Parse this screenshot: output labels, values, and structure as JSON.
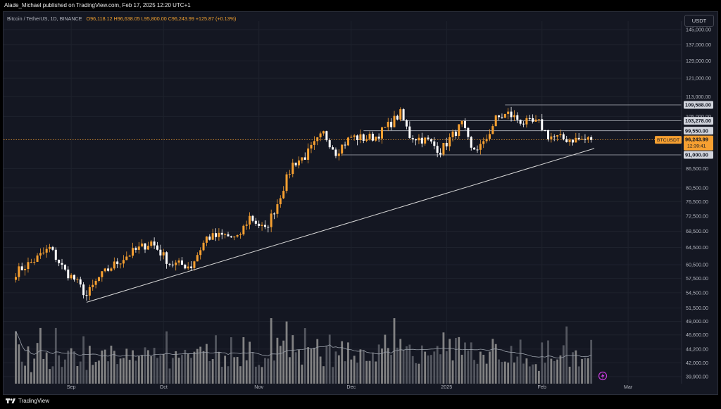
{
  "publisher": "Alade_Michael published on TradingView.com, Feb 17, 2025 12:20 UTC+1",
  "symbol": "Bitcoin / TetherUS, 1D, BINANCE",
  "ohlc": "O96,118.12 H96,638.05 L95,800.00 C96,243.99 +125.87 (+0.13%)",
  "currency": "USDT",
  "brand": "TradingView",
  "colors": {
    "up": "#f7a031",
    "down": "#ffffff",
    "bg": "#141722"
  },
  "chart_data": {
    "type": "candlestick",
    "title": "Bitcoin / TetherUS, 1D, BINANCE",
    "y_scale": "log",
    "ylim": [
      39000,
      152000
    ],
    "y_ticks": [
      "145,000.00",
      "137,000.00",
      "129,000.00",
      "121,000.00",
      "113,000.00",
      "105,000.00",
      "86,500.00",
      "80,500.00",
      "76,500.00",
      "72,500.00",
      "68,500.00",
      "64,500.00",
      "60,500.00",
      "57,500.00",
      "54,500.00",
      "51,500.00",
      "49,000.00",
      "46,600.00",
      "44,200.00",
      "42,000.00",
      "39,900.00"
    ],
    "x_labels": [
      "Sep",
      "Oct",
      "Nov",
      "Dec",
      "2025",
      "Feb",
      "Mar"
    ],
    "price_levels": [
      {
        "label": "109,588.00",
        "value": 109588
      },
      {
        "label": "103,278.00",
        "value": 103278
      },
      {
        "label": "99,550.00",
        "value": 99550
      },
      {
        "label": "91,000.00",
        "value": 91000
      }
    ],
    "last_price": {
      "symbol": "BTCUSDT",
      "value": "96,243.99",
      "countdown": "12:39:41",
      "numeric": 96243.99
    },
    "trendline": [
      {
        "date": "2024-09-06",
        "price": 52600
      },
      {
        "date": "2025-02-18",
        "price": 93200
      }
    ],
    "anchors": [
      [
        "2024-08-14",
        58800
      ],
      [
        "2024-08-20",
        61500
      ],
      [
        "2024-08-25",
        64300
      ],
      [
        "2024-08-30",
        59000
      ],
      [
        "2024-09-02",
        57300
      ],
      [
        "2024-09-06",
        53900
      ],
      [
        "2024-09-10",
        57600
      ],
      [
        "2024-09-14",
        60000
      ],
      [
        "2024-09-20",
        63000
      ],
      [
        "2024-09-27",
        65800
      ],
      [
        "2024-10-03",
        60800
      ],
      [
        "2024-10-10",
        60200
      ],
      [
        "2024-10-15",
        66900
      ],
      [
        "2024-10-21",
        67400
      ],
      [
        "2024-10-25",
        66500
      ],
      [
        "2024-10-29",
        72300
      ],
      [
        "2024-11-03",
        68700
      ],
      [
        "2024-11-07",
        76000
      ],
      [
        "2024-11-12",
        88000
      ],
      [
        "2024-11-16",
        90500
      ],
      [
        "2024-11-22",
        98500
      ],
      [
        "2024-11-26",
        92000
      ],
      [
        "2024-12-01",
        97300
      ],
      [
        "2024-12-05",
        96800
      ],
      [
        "2024-12-09",
        97400
      ],
      [
        "2024-12-13",
        101400
      ],
      [
        "2024-12-17",
        106100
      ],
      [
        "2024-12-20",
        97700
      ],
      [
        "2024-12-26",
        95800
      ],
      [
        "2024-12-30",
        92400
      ],
      [
        "2025-01-06",
        102000
      ],
      [
        "2025-01-09",
        92600
      ],
      [
        "2025-01-13",
        94500
      ],
      [
        "2025-01-17",
        104000
      ],
      [
        "2025-01-21",
        106000
      ],
      [
        "2025-01-26",
        102600
      ],
      [
        "2025-01-31",
        102400
      ],
      [
        "2025-02-03",
        97700
      ],
      [
        "2025-02-08",
        96500
      ],
      [
        "2025-02-17",
        96244
      ]
    ],
    "volume": {
      "ylim": [
        0,
        1
      ],
      "note": "relative daily volume bars with moving average"
    }
  }
}
